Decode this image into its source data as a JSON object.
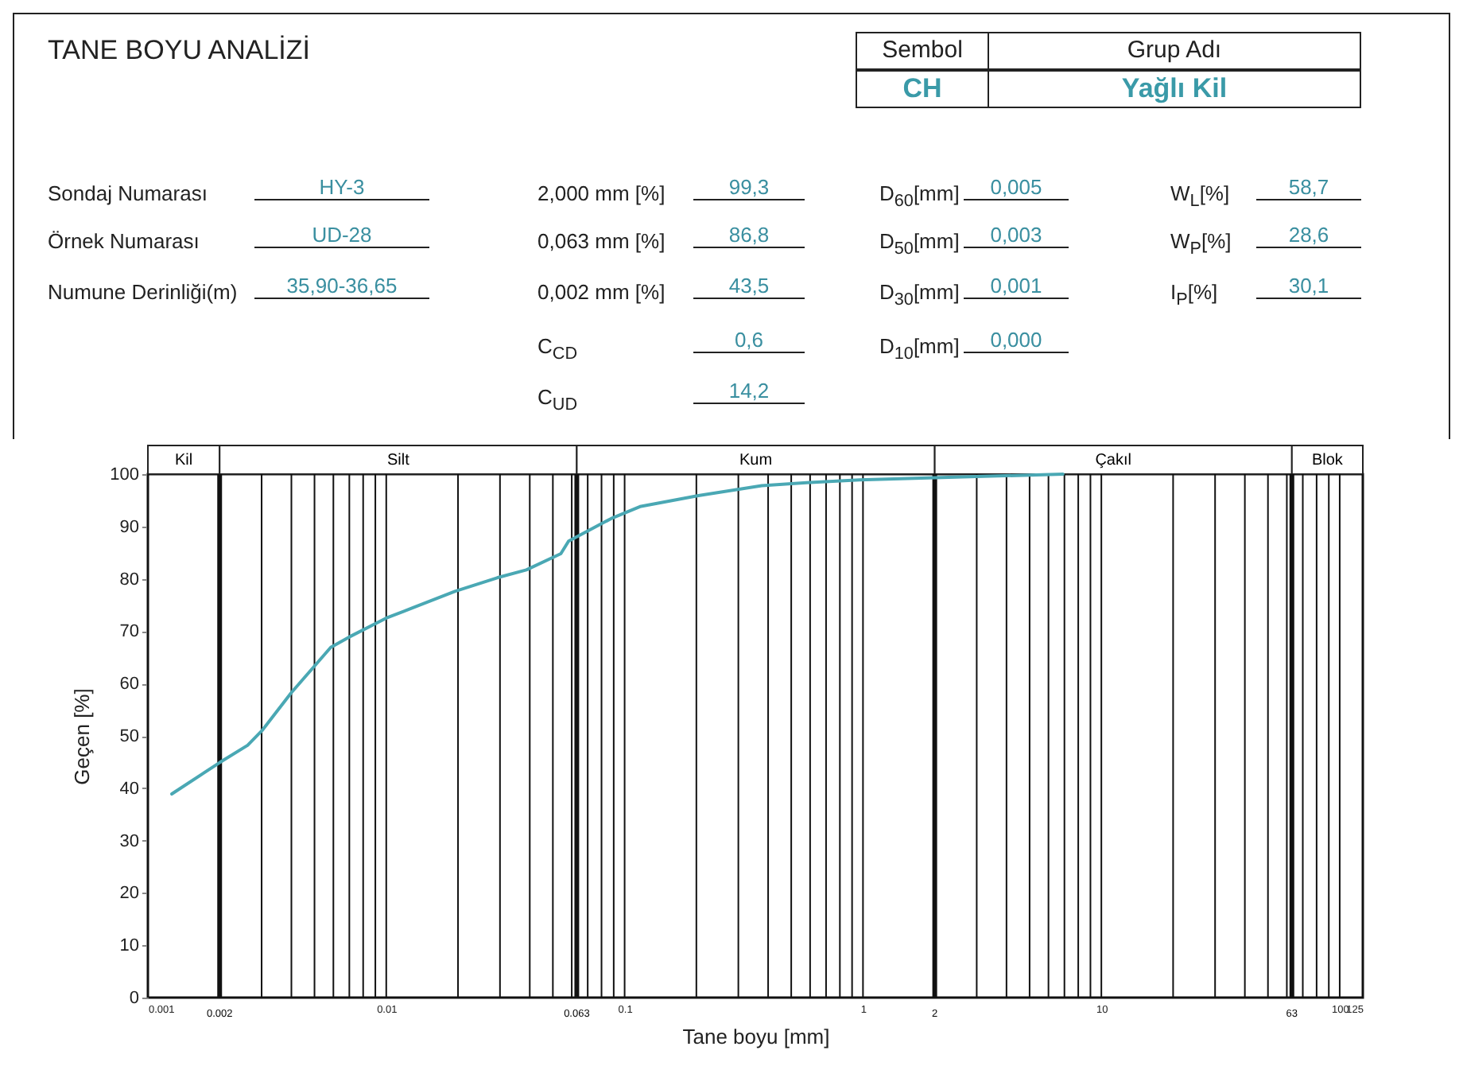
{
  "chart_data": {
    "type": "line",
    "title": "TANE BOYU ANALİZİ",
    "xlabel": "Tane boyu [mm]",
    "ylabel": "Geçen [%]",
    "annotations": [
      "Sembol",
      "Grup Adı",
      "CH",
      "Yağlı Kil",
      "Sondaj Numarası",
      "HY-3",
      "2,000 mm [%]",
      "99,3",
      "D$_{60}$[mm]",
      "0,005",
      "W$_{L}$[%]",
      "58,7",
      "Örnek Numarası",
      "UD-28",
      "0,063 mm [%]",
      "86,8",
      "D$_{50}$[mm]",
      "0,003",
      "W$_{P}$[%]",
      "28,6",
      "Numune Derinliği(m)",
      "35,90-36,65",
      "0,002 mm [%]",
      "43,5",
      "D$_{30}$[mm]",
      "0,001",
      "I$_{P}$[%]",
      "30,1",
      "C$_{CD}$",
      "0,6",
      "D$_{10}$[mm]",
      "0,000",
      "C$_{UD}$",
      "14,2",
      "Kil",
      "Silt",
      "Kum",
      "Çakıl",
      "Blok"
    ],
    "x": [
      0.00126,
      0.002,
      0.00262,
      0.00301,
      0.00399,
      0.00585,
      0.007,
      0.01,
      0.0194,
      0.0292,
      0.0387,
      0.054,
      0.0582,
      0.0877,
      0.116,
      0.204,
      0.376,
      0.6,
      0.966,
      2,
      6.9
    ],
    "series": [
      {
        "color": "#4aa8b4",
        "values": [
          38.9,
          44.9,
          48.2,
          51,
          58.2,
          66.9,
          68.9,
          72.5,
          77.6,
          80.2,
          81.7,
          84.8,
          87.2,
          91.5,
          93.8,
          95.9,
          97.8,
          98.4,
          98.9,
          99.3,
          100
        ]
      }
    ],
    "log": "x",
    "grid": "x",
    "xlim": [
      0.001,
      125
    ],
    "ylim": [
      0,
      100
    ],
    "xticks": [
      0.001,
      {
        "value": 0.003,
        "label": null
      },
      {
        "value": 0.004,
        "label": null
      },
      {
        "value": 0.005,
        "label": null
      },
      {
        "value": 0.006,
        "label": null
      },
      {
        "value": 0.007,
        "label": null
      },
      {
        "value": 0.008,
        "label": null
      },
      {
        "value": 0.009,
        "label": null
      },
      0.01,
      {
        "value": 0.02,
        "label": null
      },
      {
        "value": 0.03,
        "label": null
      },
      {
        "value": 0.04,
        "label": null
      },
      {
        "value": 0.05,
        "label": null
      },
      {
        "value": 0.06,
        "label": null
      },
      {
        "value": 0.07,
        "label": null
      },
      {
        "value": 0.08,
        "label": null
      },
      {
        "value": 0.09,
        "label": null
      },
      0.1,
      {
        "value": 0.2,
        "label": null
      },
      {
        "value": 0.3,
        "label": null
      },
      {
        "value": 0.4,
        "label": null
      },
      {
        "value": 0.5,
        "label": null
      },
      {
        "value": 0.6,
        "label": null
      },
      {
        "value": 0.7,
        "label": null
      },
      {
        "value": 0.8,
        "label": null
      },
      {
        "value": 0.9,
        "label": null
      },
      1,
      {
        "value": 3,
        "label": null
      },
      {
        "value": 4,
        "label": null
      },
      {
        "value": 5,
        "label": null
      },
      {
        "value": 6,
        "label": null
      },
      {
        "value": 7,
        "label": null
      },
      {
        "value": 8,
        "label": null
      },
      {
        "value": 9,
        "label": null
      },
      10,
      {
        "value": 20,
        "label": null
      },
      {
        "value": 30,
        "label": null
      },
      {
        "value": 40,
        "label": null
      },
      {
        "value": 50,
        "label": null
      },
      {
        "value": 60,
        "label": null
      },
      {
        "value": 70,
        "label": null
      },
      {
        "value": 80,
        "label": null
      },
      {
        "value": 90,
        "label": null
      },
      100,
      125
    ],
    "yticks": [
      0,
      10,
      20,
      30,
      40,
      50,
      60,
      70,
      80,
      90,
      100
    ],
    "ref_lines": [
      {
        "axis": "x",
        "value": 0.002,
        "label": "0.002"
      },
      {
        "axis": "x",
        "value": 0.063,
        "label": "0.063"
      },
      {
        "axis": "x",
        "value": 2,
        "label": "2"
      },
      {
        "axis": "x",
        "value": 63,
        "label": "63"
      }
    ]
  }
}
